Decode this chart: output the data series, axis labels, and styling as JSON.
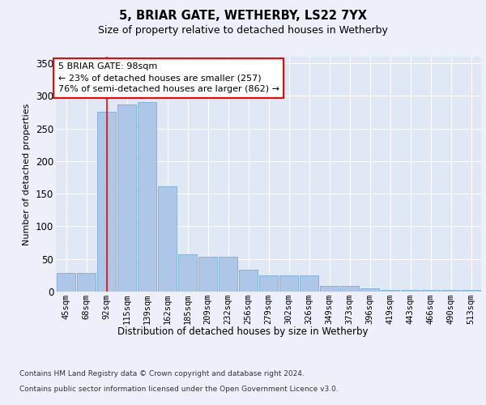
{
  "title1": "5, BRIAR GATE, WETHERBY, LS22 7YX",
  "title2": "Size of property relative to detached houses in Wetherby",
  "xlabel": "Distribution of detached houses by size in Wetherby",
  "ylabel": "Number of detached properties",
  "footnote1": "Contains HM Land Registry data © Crown copyright and database right 2024.",
  "footnote2": "Contains public sector information licensed under the Open Government Licence v3.0.",
  "annotation_line1": "5 BRIAR GATE: 98sqm",
  "annotation_line2": "← 23% of detached houses are smaller (257)",
  "annotation_line3": "76% of semi-detached houses are larger (862) →",
  "categories": [
    "45sqm",
    "68sqm",
    "92sqm",
    "115sqm",
    "139sqm",
    "162sqm",
    "185sqm",
    "209sqm",
    "232sqm",
    "256sqm",
    "279sqm",
    "302sqm",
    "326sqm",
    "349sqm",
    "373sqm",
    "396sqm",
    "419sqm",
    "443sqm",
    "466sqm",
    "490sqm",
    "513sqm"
  ],
  "values": [
    28,
    28,
    275,
    287,
    290,
    162,
    57,
    54,
    54,
    34,
    25,
    25,
    25,
    9,
    9,
    5,
    3,
    2,
    3,
    3,
    3
  ],
  "bar_color": "#aec6e8",
  "bar_edge_color": "#7aadd4",
  "red_line_index": 2,
  "ylim": [
    0,
    360
  ],
  "yticks": [
    0,
    50,
    100,
    150,
    200,
    250,
    300,
    350
  ],
  "bg_color": "#edf0fb",
  "plot_bg_color": "#e0e8f5",
  "title1_fontsize": 10.5,
  "title2_fontsize": 9,
  "ylabel_fontsize": 8,
  "xlabel_fontsize": 8.5,
  "tick_fontsize": 7.5,
  "ytick_fontsize": 8.5,
  "annotation_fontsize": 8,
  "footnote_fontsize": 6.5
}
